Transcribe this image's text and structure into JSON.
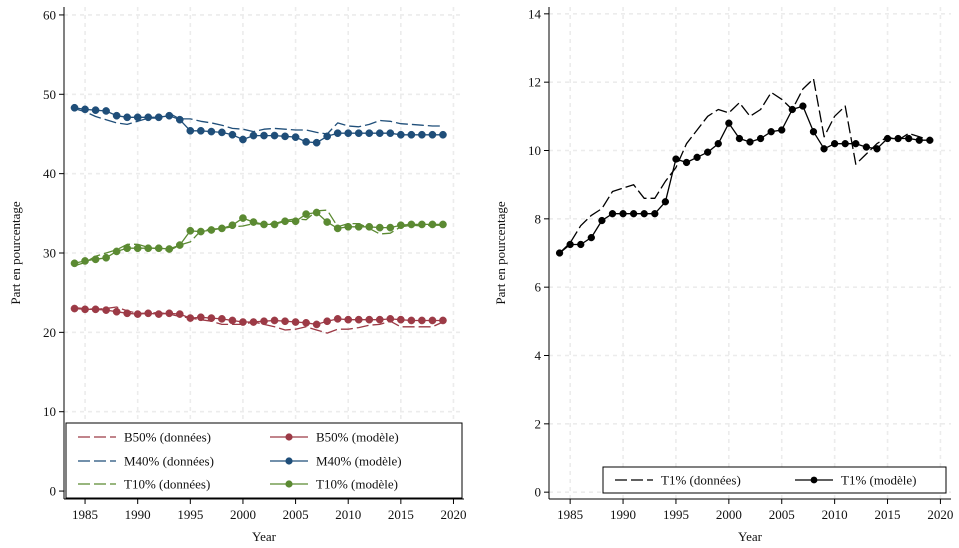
{
  "chart_data": [
    {
      "type": "line",
      "xlabel": "Year",
      "ylabel": "Part en pourcentage",
      "xlim": [
        1983,
        2021
      ],
      "ylim": [
        -1,
        61
      ],
      "xticks": [
        "1985",
        "1990",
        "1995",
        "2000",
        "2005",
        "2010",
        "2015",
        "2020"
      ],
      "yticks": [
        "0",
        "10",
        "20",
        "30",
        "40",
        "50",
        "60"
      ],
      "grid": true,
      "legend_position": "bottom",
      "series": [
        {
          "name": "B50% (données)",
          "style": "dashed",
          "marker": false,
          "color": "#9c3a46",
          "x": [
            1984,
            1985,
            1986,
            1987,
            1988,
            1989,
            1990,
            1991,
            1992,
            1993,
            1994,
            1995,
            1996,
            1997,
            1998,
            1999,
            2000,
            2001,
            2002,
            2003,
            2004,
            2005,
            2006,
            2007,
            2008,
            2009,
            2010,
            2011,
            2012,
            2013,
            2014,
            2015,
            2016,
            2017,
            2018,
            2019
          ],
          "y": [
            23.1,
            23.0,
            22.9,
            23.0,
            23.2,
            22.7,
            22.4,
            22.4,
            22.5,
            22.3,
            22.0,
            21.8,
            21.6,
            21.4,
            21.0,
            21.0,
            21.0,
            21.3,
            21.0,
            20.7,
            20.3,
            20.4,
            20.7,
            20.3,
            19.9,
            20.4,
            20.4,
            20.6,
            20.9,
            21.0,
            21.4,
            20.7,
            20.7,
            20.7,
            20.7,
            21.3
          ]
        },
        {
          "name": "B50% (modèle)",
          "style": "solid",
          "marker": true,
          "color": "#9c3a46",
          "x": [
            1984,
            1985,
            1986,
            1987,
            1988,
            1989,
            1990,
            1991,
            1992,
            1993,
            1994,
            1995,
            1996,
            1997,
            1998,
            1999,
            2000,
            2001,
            2002,
            2003,
            2004,
            2005,
            2006,
            2007,
            2008,
            2009,
            2010,
            2011,
            2012,
            2013,
            2014,
            2015,
            2016,
            2017,
            2018,
            2019
          ],
          "y": [
            23.0,
            22.9,
            22.9,
            22.8,
            22.6,
            22.4,
            22.3,
            22.4,
            22.3,
            22.4,
            22.3,
            21.8,
            21.9,
            21.8,
            21.7,
            21.5,
            21.3,
            21.3,
            21.4,
            21.5,
            21.4,
            21.3,
            21.2,
            21.0,
            21.4,
            21.7,
            21.6,
            21.6,
            21.6,
            21.6,
            21.7,
            21.6,
            21.5,
            21.5,
            21.5,
            21.5
          ]
        },
        {
          "name": "M40% (données)",
          "style": "dashed",
          "marker": false,
          "color": "#1f4e79",
          "x": [
            1984,
            1985,
            1986,
            1987,
            1988,
            1989,
            1990,
            1991,
            1992,
            1993,
            1994,
            1995,
            1996,
            1997,
            1998,
            1999,
            2000,
            2001,
            2002,
            2003,
            2004,
            2005,
            2006,
            2007,
            2008,
            2009,
            2010,
            2011,
            2012,
            2013,
            2014,
            2015,
            2016,
            2017,
            2018,
            2019
          ],
          "y": [
            48.2,
            47.8,
            47.2,
            46.8,
            46.4,
            46.2,
            46.6,
            47.0,
            47.0,
            47.6,
            46.9,
            46.9,
            46.6,
            46.4,
            46.1,
            45.7,
            45.6,
            45.3,
            45.6,
            45.7,
            45.6,
            45.5,
            45.5,
            45.2,
            45.0,
            46.4,
            46.0,
            45.9,
            46.2,
            46.7,
            46.6,
            46.3,
            46.2,
            46.1,
            46.0,
            46.0
          ]
        },
        {
          "name": "M40% (modèle)",
          "style": "solid",
          "marker": true,
          "color": "#1f4e79",
          "x": [
            1984,
            1985,
            1986,
            1987,
            1988,
            1989,
            1990,
            1991,
            1992,
            1993,
            1994,
            1995,
            1996,
            1997,
            1998,
            1999,
            2000,
            2001,
            2002,
            2003,
            2004,
            2005,
            2006,
            2007,
            2008,
            2009,
            2010,
            2011,
            2012,
            2013,
            2014,
            2015,
            2016,
            2017,
            2018,
            2019
          ],
          "y": [
            48.3,
            48.1,
            48.0,
            47.9,
            47.3,
            47.1,
            47.1,
            47.1,
            47.1,
            47.3,
            46.8,
            45.4,
            45.4,
            45.3,
            45.2,
            44.9,
            44.3,
            44.8,
            44.8,
            44.8,
            44.7,
            44.6,
            44.0,
            43.9,
            44.7,
            45.1,
            45.1,
            45.1,
            45.1,
            45.1,
            45.1,
            44.9,
            44.9,
            44.9,
            44.9,
            44.9
          ]
        },
        {
          "name": "T10% (données)",
          "style": "dashed",
          "marker": false,
          "color": "#5b8a32",
          "x": [
            1984,
            1985,
            1986,
            1987,
            1988,
            1989,
            1990,
            1991,
            1992,
            1993,
            1994,
            1995,
            1996,
            1997,
            1998,
            1999,
            2000,
            2001,
            2002,
            2003,
            2004,
            2005,
            2006,
            2007,
            2008,
            2009,
            2010,
            2011,
            2012,
            2013,
            2014,
            2015,
            2016,
            2017,
            2018,
            2019
          ],
          "y": [
            28.4,
            28.8,
            29.6,
            30.0,
            30.4,
            31.1,
            31.1,
            30.7,
            30.5,
            30.3,
            31.0,
            31.4,
            32.8,
            33.0,
            33.1,
            33.3,
            33.4,
            33.7,
            33.6,
            33.7,
            34.1,
            34.3,
            34.2,
            35.3,
            35.4,
            33.3,
            33.7,
            33.7,
            33.1,
            32.4,
            32.5,
            33.3,
            33.5,
            33.4,
            33.5,
            33.5
          ]
        },
        {
          "name": "T10% (modèle)",
          "style": "solid",
          "marker": true,
          "color": "#5b8a32",
          "x": [
            1984,
            1985,
            1986,
            1987,
            1988,
            1989,
            1990,
            1991,
            1992,
            1993,
            1994,
            1995,
            1996,
            1997,
            1998,
            1999,
            2000,
            2001,
            2002,
            2003,
            2004,
            2005,
            2006,
            2007,
            2008,
            2009,
            2010,
            2011,
            2012,
            2013,
            2014,
            2015,
            2016,
            2017,
            2018,
            2019
          ],
          "y": [
            28.7,
            29.0,
            29.2,
            29.4,
            30.2,
            30.6,
            30.6,
            30.6,
            30.6,
            30.5,
            31.0,
            32.8,
            32.7,
            32.9,
            33.1,
            33.5,
            34.4,
            33.9,
            33.6,
            33.6,
            34.0,
            34.0,
            34.9,
            35.1,
            33.9,
            33.1,
            33.3,
            33.3,
            33.3,
            33.2,
            33.2,
            33.5,
            33.6,
            33.6,
            33.6,
            33.6
          ]
        }
      ]
    },
    {
      "type": "line",
      "xlabel": "Year",
      "ylabel": "Part en pourcentage",
      "xlim": [
        1983,
        2021
      ],
      "ylim": [
        -0.2,
        14.2
      ],
      "xticks": [
        "1985",
        "1990",
        "1995",
        "2000",
        "2005",
        "2010",
        "2015",
        "2020"
      ],
      "yticks": [
        "0",
        "2",
        "4",
        "6",
        "8",
        "10",
        "12",
        "14"
      ],
      "grid": true,
      "legend_position": "bottom",
      "series": [
        {
          "name": "T1% (données)",
          "style": "dashed",
          "marker": false,
          "color": "#000000",
          "x": [
            1984,
            1985,
            1986,
            1987,
            1988,
            1989,
            1990,
            1991,
            1992,
            1993,
            1994,
            1995,
            1996,
            1997,
            1998,
            1999,
            2000,
            2001,
            2002,
            2003,
            2004,
            2005,
            2006,
            2007,
            2008,
            2009,
            2010,
            2011,
            2012,
            2013,
            2014,
            2015,
            2016,
            2017,
            2018,
            2019
          ],
          "y": [
            7.0,
            7.3,
            7.8,
            8.1,
            8.3,
            8.8,
            8.9,
            9.0,
            8.6,
            8.6,
            9.1,
            9.5,
            10.2,
            10.6,
            11.0,
            11.2,
            11.1,
            11.4,
            11.0,
            11.2,
            11.7,
            11.5,
            11.2,
            11.8,
            12.1,
            10.4,
            11.0,
            11.3,
            9.6,
            9.9,
            10.2,
            10.4,
            10.3,
            10.5,
            10.4,
            10.3
          ]
        },
        {
          "name": "T1% (modèle)",
          "style": "solid",
          "marker": true,
          "color": "#000000",
          "x": [
            1984,
            1985,
            1986,
            1987,
            1988,
            1989,
            1990,
            1991,
            1992,
            1993,
            1994,
            1995,
            1996,
            1997,
            1998,
            1999,
            2000,
            2001,
            2002,
            2003,
            2004,
            2005,
            2006,
            2007,
            2008,
            2009,
            2010,
            2011,
            2012,
            2013,
            2014,
            2015,
            2016,
            2017,
            2018,
            2019
          ],
          "y": [
            7.0,
            7.25,
            7.25,
            7.45,
            7.95,
            8.15,
            8.15,
            8.15,
            8.15,
            8.15,
            8.5,
            9.75,
            9.65,
            9.8,
            9.95,
            10.2,
            10.8,
            10.35,
            10.25,
            10.35,
            10.55,
            10.6,
            11.2,
            11.3,
            10.55,
            10.05,
            10.2,
            10.2,
            10.2,
            10.1,
            10.05,
            10.35,
            10.35,
            10.35,
            10.3,
            10.3
          ]
        }
      ]
    }
  ]
}
